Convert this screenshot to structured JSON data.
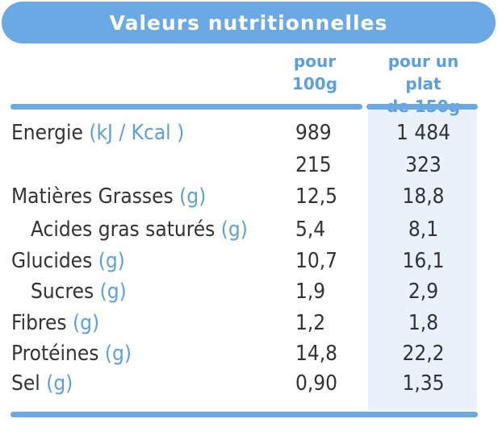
{
  "title": "Valeurs nutritionnelles",
  "columns": {
    "per100": [
      "pour",
      "100g"
    ],
    "per150": [
      "pour un plat",
      "de 150g"
    ]
  },
  "rows": [
    {
      "label": "Energie",
      "unit": "(kJ / Kcal )",
      "v100": "989",
      "v150": "1 484"
    },
    {
      "label": "",
      "unit": "",
      "v100": "215",
      "v150": "323"
    },
    {
      "label": "Matières Grasses",
      "unit": "(g)",
      "v100": "12,5",
      "v150": "18,8"
    },
    {
      "label": "Acides gras saturés",
      "unit": "(g)",
      "v100": "5,4",
      "v150": "8,1"
    },
    {
      "label": "Glucides",
      "unit": "(g)",
      "v100": "10,7",
      "v150": "16,1"
    },
    {
      "label": "Sucres",
      "unit": "(g)",
      "v100": "1,9",
      "v150": "2,9"
    },
    {
      "label": "Fibres",
      "unit": "(g)",
      "v100": "1,2",
      "v150": "1,8"
    },
    {
      "label": "Protéines",
      "unit": "(g)",
      "v100": "14,8",
      "v150": "22,2"
    },
    {
      "label": "Sel",
      "unit": "(g)",
      "v100": "0,90",
      "v150": "1,35"
    }
  ],
  "colors": {
    "accent": "#6aa9e3",
    "unit_text": "#5b9fdf",
    "column_shade": "#e9f1fb",
    "body_text": "#333333"
  }
}
